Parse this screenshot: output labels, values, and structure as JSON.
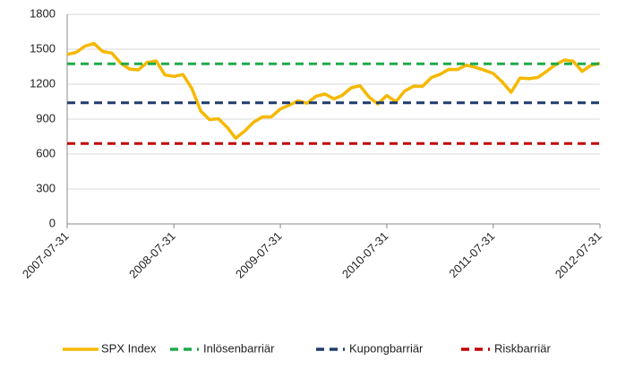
{
  "chart_data": {
    "type": "line",
    "x": [
      "2007-07-31",
      "2007-08-31",
      "2007-09-30",
      "2007-10-31",
      "2007-11-30",
      "2007-12-31",
      "2008-01-31",
      "2008-02-29",
      "2008-03-31",
      "2008-04-30",
      "2008-05-31",
      "2008-06-30",
      "2008-07-31",
      "2008-08-31",
      "2008-09-30",
      "2008-10-31",
      "2008-11-30",
      "2008-12-31",
      "2009-01-31",
      "2009-02-28",
      "2009-03-31",
      "2009-04-30",
      "2009-05-31",
      "2009-06-30",
      "2009-07-31",
      "2009-08-31",
      "2009-09-30",
      "2009-10-31",
      "2009-11-30",
      "2009-12-31",
      "2010-01-31",
      "2010-02-28",
      "2010-03-31",
      "2010-04-30",
      "2010-05-31",
      "2010-06-30",
      "2010-07-31",
      "2010-08-31",
      "2010-09-30",
      "2010-10-31",
      "2010-11-30",
      "2010-12-31",
      "2011-01-31",
      "2011-02-28",
      "2011-03-31",
      "2011-04-30",
      "2011-05-31",
      "2011-06-30",
      "2011-07-31",
      "2011-08-31",
      "2011-09-30",
      "2011-10-31",
      "2011-11-30",
      "2011-12-31",
      "2012-01-31",
      "2012-02-29",
      "2012-03-31",
      "2012-04-30",
      "2012-05-31",
      "2012-06-30",
      "2012-07-31"
    ],
    "series": [
      {
        "name": "SPX Index",
        "color": "#f5b800",
        "dash": false,
        "values": [
          1455,
          1474,
          1527,
          1549,
          1481,
          1468,
          1379,
          1331,
          1323,
          1386,
          1400,
          1280,
          1267,
          1283,
          1166,
          969,
          896,
          903,
          826,
          735,
          798,
          873,
          919,
          919,
          987,
          1021,
          1057,
          1036,
          1096,
          1115,
          1074,
          1104,
          1169,
          1187,
          1089,
          1031,
          1102,
          1049,
          1141,
          1183,
          1181,
          1258,
          1286,
          1327,
          1326,
          1364,
          1345,
          1321,
          1292,
          1219,
          1131,
          1253,
          1247,
          1258,
          1312,
          1366,
          1408,
          1398,
          1310,
          1362,
          1379
        ]
      },
      {
        "name": "Inlösenbarriär",
        "color": "#1faa4a",
        "dash": true,
        "x": [
          "2007-07-31",
          "2012-07-31"
        ],
        "values": [
          1375,
          1375
        ]
      },
      {
        "name": "Kupongbarriär",
        "color": "#1f3c6b",
        "dash": true,
        "x": [
          "2007-07-31",
          "2012-07-31"
        ],
        "values": [
          1040,
          1040
        ]
      },
      {
        "name": "Riskbarriär",
        "color": "#c00000",
        "dash": true,
        "x": [
          "2007-07-31",
          "2012-07-31"
        ],
        "values": [
          690,
          690
        ]
      }
    ],
    "xlim": [
      "2007-07-31",
      "2012-07-31"
    ],
    "xticks": [
      "2007-07-31",
      "2008-07-31",
      "2009-07-31",
      "2010-07-31",
      "2011-07-31",
      "2012-07-31"
    ],
    "ylim": [
      0,
      1800
    ],
    "yticks": [
      0,
      300,
      600,
      900,
      1200,
      1500,
      1800
    ],
    "grid": true,
    "legend": "bottom"
  }
}
